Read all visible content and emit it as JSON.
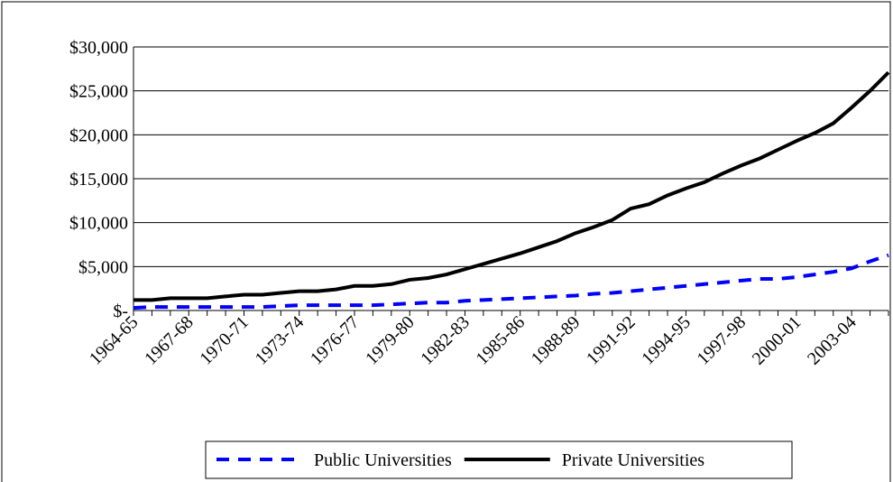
{
  "chart_data": {
    "type": "line",
    "categories": [
      "1964-65",
      null,
      null,
      "1967-68",
      null,
      null,
      "1970-71",
      null,
      null,
      "1973-74",
      null,
      null,
      "1976-77",
      null,
      null,
      "1979-80",
      null,
      null,
      "1982-83",
      null,
      null,
      "1985-86",
      null,
      null,
      "1988-89",
      null,
      null,
      "1991-92",
      null,
      null,
      "1994-95",
      null,
      null,
      "1997-98",
      null,
      null,
      "2000-01",
      null,
      null,
      "2003-04",
      null,
      null
    ],
    "series": [
      {
        "name": "Public Universities",
        "color": "#0000ff",
        "dashed": true,
        "values": [
          300,
          400,
          400,
          400,
          400,
          400,
          400,
          400,
          500,
          600,
          600,
          600,
          600,
          600,
          700,
          800,
          900,
          900,
          1100,
          1200,
          1300,
          1400,
          1500,
          1600,
          1700,
          1900,
          2000,
          2200,
          2400,
          2600,
          2800,
          3000,
          3200,
          3400,
          3600,
          3600,
          3800,
          4100,
          4400,
          4800,
          5600,
          6300
        ]
      },
      {
        "name": "Private Universities",
        "color": "#000000",
        "dashed": false,
        "values": [
          1200,
          1200,
          1400,
          1400,
          1400,
          1600,
          1800,
          1800,
          2000,
          2200,
          2200,
          2400,
          2800,
          2800,
          3000,
          3500,
          3700,
          4100,
          4700,
          5300,
          5900,
          6500,
          7200,
          7900,
          8800,
          9500,
          10300,
          11600,
          12100,
          13100,
          13900,
          14600,
          15600,
          16500,
          17300,
          18300,
          19300,
          20200,
          21300,
          23100,
          25000,
          27100
        ]
      }
    ],
    "ylim": [
      0,
      30000
    ],
    "yticks": [
      {
        "value": 0,
        "label": "$-"
      },
      {
        "value": 5000,
        "label": "$5,000"
      },
      {
        "value": 10000,
        "label": "$10,000"
      },
      {
        "value": 15000,
        "label": "$15,000"
      },
      {
        "value": 20000,
        "label": "$20,000"
      },
      {
        "value": 25000,
        "label": "$25,000"
      },
      {
        "value": 30000,
        "label": "$30,000"
      }
    ],
    "grid": true,
    "legend": "bottom"
  }
}
